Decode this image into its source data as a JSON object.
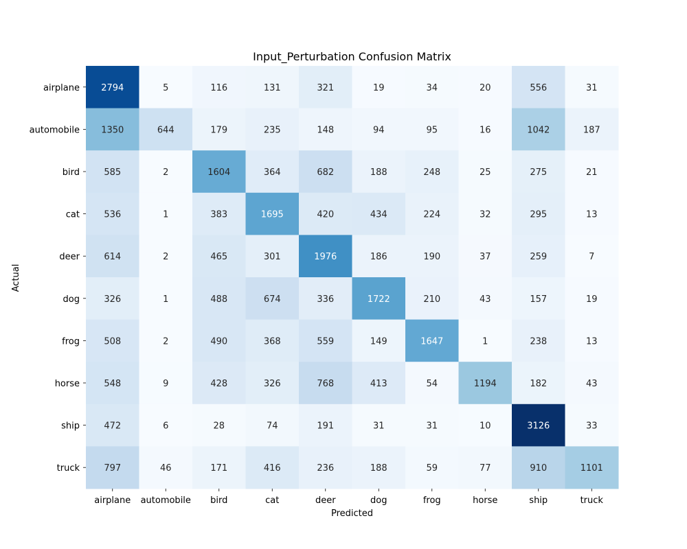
{
  "chart_data": {
    "type": "heatmap",
    "title": "Input_Perturbation Confusion Matrix",
    "xlabel": "Predicted",
    "ylabel": "Actual",
    "x_categories": [
      "airplane",
      "automobile",
      "bird",
      "cat",
      "deer",
      "dog",
      "frog",
      "horse",
      "ship",
      "truck"
    ],
    "y_categories": [
      "airplane",
      "automobile",
      "bird",
      "cat",
      "deer",
      "dog",
      "frog",
      "horse",
      "ship",
      "truck"
    ],
    "values": [
      [
        2794,
        5,
        116,
        131,
        321,
        19,
        34,
        20,
        556,
        31
      ],
      [
        1350,
        644,
        179,
        235,
        148,
        94,
        95,
        16,
        1042,
        187
      ],
      [
        585,
        2,
        1604,
        364,
        682,
        188,
        248,
        25,
        275,
        21
      ],
      [
        536,
        1,
        383,
        1695,
        420,
        434,
        224,
        32,
        295,
        13
      ],
      [
        614,
        2,
        465,
        301,
        1976,
        186,
        190,
        37,
        259,
        7
      ],
      [
        326,
        1,
        488,
        674,
        336,
        1722,
        210,
        43,
        157,
        19
      ],
      [
        508,
        2,
        490,
        368,
        559,
        149,
        1647,
        1,
        238,
        13
      ],
      [
        548,
        9,
        428,
        326,
        768,
        413,
        54,
        1194,
        182,
        43
      ],
      [
        472,
        6,
        28,
        74,
        191,
        31,
        31,
        10,
        3126,
        33
      ],
      [
        797,
        46,
        171,
        416,
        236,
        188,
        59,
        77,
        910,
        1101
      ]
    ],
    "colormap": "Blues",
    "color_range": [
      0,
      3126
    ],
    "colorbar": false,
    "grid": false
  }
}
